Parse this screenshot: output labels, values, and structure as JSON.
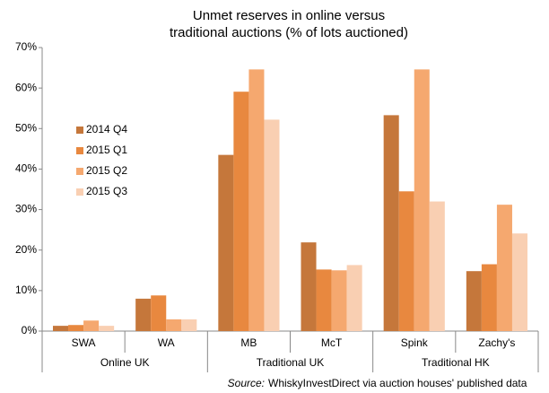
{
  "chart_data": {
    "type": "bar",
    "title": [
      "Unmet reserves in online versus",
      "traditional auctions (% of lots auctioned)"
    ],
    "categories": [
      "SWA",
      "WA",
      "MB",
      "McT",
      "Spink",
      "Zachy's"
    ],
    "groups": [
      {
        "name": "Online UK",
        "span": 2
      },
      {
        "name": "Traditional UK",
        "span": 2
      },
      {
        "name": "Traditional HK",
        "span": 2
      }
    ],
    "series": [
      {
        "name": "2014 Q4",
        "color": "#c5773b",
        "values": [
          1.3,
          8.0,
          43.5,
          21.9,
          53.3,
          14.8
        ]
      },
      {
        "name": "2015 Q1",
        "color": "#e8883f",
        "values": [
          1.5,
          8.8,
          59.1,
          15.2,
          34.5,
          16.5
        ]
      },
      {
        "name": "2015 Q2",
        "color": "#f5a86f",
        "values": [
          2.6,
          2.9,
          64.6,
          15.0,
          64.6,
          31.2
        ]
      },
      {
        "name": "2015 Q3",
        "color": "#f9cfb2",
        "values": [
          1.3,
          2.9,
          52.2,
          16.3,
          32.0,
          24.1
        ]
      }
    ],
    "ylim": [
      0,
      70
    ],
    "yticks": [
      {
        "value": 0,
        "label": "0%"
      },
      {
        "value": 10,
        "label": "10%"
      },
      {
        "value": 20,
        "label": "20%"
      },
      {
        "value": 30,
        "label": "30%"
      },
      {
        "value": 40,
        "label": "40%"
      },
      {
        "value": 50,
        "label": "50%"
      },
      {
        "value": 60,
        "label": "60%"
      },
      {
        "value": 70,
        "label": "70%"
      }
    ],
    "legend": "left",
    "source_label": "Source:",
    "source_text": "WhiskyInvestDirect via auction houses' published data"
  }
}
